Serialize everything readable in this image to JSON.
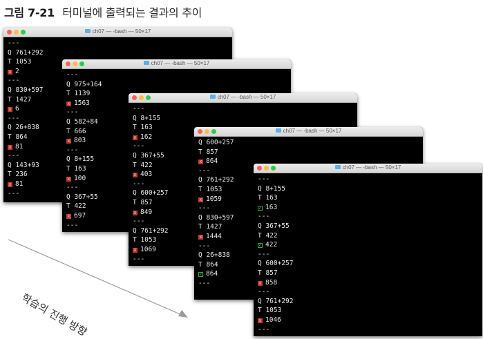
{
  "caption": {
    "number": "그림 7-21",
    "title": "터미널에 출력되는 결과의 추이"
  },
  "direction_label": "학습의 진행 방향",
  "icons": {
    "window_buttons": [
      "close-dot",
      "minimize-dot",
      "zoom-dot"
    ],
    "folder": "folder-icon",
    "wrong": "wrong-mark-icon",
    "correct": "correct-mark-icon"
  },
  "colors": {
    "terminal_bg": "#000000",
    "text": "#e8e8e8",
    "wrong_mark": "#c0392b",
    "correct_mark": "#2fa84f"
  },
  "windows": [
    {
      "title": "ch07 — -bash — 50×17",
      "lines": [
        {
          "kind": "sep",
          "text": "---"
        },
        {
          "kind": "q",
          "text": "Q 761+292"
        },
        {
          "kind": "t",
          "text": "T 1053"
        },
        {
          "kind": "x",
          "text": "2"
        },
        {
          "kind": "sep",
          "text": "---"
        },
        {
          "kind": "q",
          "text": "Q 830+597"
        },
        {
          "kind": "t",
          "text": "T 1427"
        },
        {
          "kind": "x",
          "text": "6"
        },
        {
          "kind": "sep",
          "text": "---"
        },
        {
          "kind": "q",
          "text": "Q 26+838"
        },
        {
          "kind": "t",
          "text": "T 864"
        },
        {
          "kind": "x",
          "text": "81"
        },
        {
          "kind": "sep",
          "text": "---"
        },
        {
          "kind": "q",
          "text": "Q 143+93"
        },
        {
          "kind": "t",
          "text": "T 236"
        },
        {
          "kind": "x",
          "text": "81"
        },
        {
          "kind": "sep",
          "text": "---"
        }
      ]
    },
    {
      "title": "ch07 — -bash — 50×17",
      "lines": [
        {
          "kind": "sep",
          "text": "---"
        },
        {
          "kind": "q",
          "text": "Q 975+164"
        },
        {
          "kind": "t",
          "text": "T 1139"
        },
        {
          "kind": "x",
          "text": "1563"
        },
        {
          "kind": "sep",
          "text": "---"
        },
        {
          "kind": "q",
          "text": "Q 582+84"
        },
        {
          "kind": "t",
          "text": "T 666"
        },
        {
          "kind": "x",
          "text": "803"
        },
        {
          "kind": "sep",
          "text": "---"
        },
        {
          "kind": "q",
          "text": "Q 8+155"
        },
        {
          "kind": "t",
          "text": "T 163"
        },
        {
          "kind": "x",
          "text": "100"
        },
        {
          "kind": "sep",
          "text": "---"
        },
        {
          "kind": "q",
          "text": "Q 367+55"
        },
        {
          "kind": "t",
          "text": "T 422"
        },
        {
          "kind": "x",
          "text": "697"
        },
        {
          "kind": "sep",
          "text": "---"
        }
      ]
    },
    {
      "title": "ch07 — -bash — 50×17",
      "lines": [
        {
          "kind": "sep",
          "text": "---"
        },
        {
          "kind": "q",
          "text": "Q 8+155"
        },
        {
          "kind": "t",
          "text": "T 163"
        },
        {
          "kind": "x",
          "text": "162"
        },
        {
          "kind": "sep",
          "text": "---"
        },
        {
          "kind": "q",
          "text": "Q 367+55"
        },
        {
          "kind": "t",
          "text": "T 422"
        },
        {
          "kind": "x",
          "text": "403"
        },
        {
          "kind": "sep",
          "text": "---"
        },
        {
          "kind": "q",
          "text": "Q 600+257"
        },
        {
          "kind": "t",
          "text": "T 857"
        },
        {
          "kind": "x",
          "text": "849"
        },
        {
          "kind": "sep",
          "text": "---"
        },
        {
          "kind": "q",
          "text": "Q 761+292"
        },
        {
          "kind": "t",
          "text": "T 1053"
        },
        {
          "kind": "x",
          "text": "1069"
        },
        {
          "kind": "sep",
          "text": "---"
        }
      ]
    },
    {
      "title": "ch07 — -bash — 50×17",
      "lines": [
        {
          "kind": "q",
          "text": "Q 600+257"
        },
        {
          "kind": "t",
          "text": "T 857"
        },
        {
          "kind": "x",
          "text": "864"
        },
        {
          "kind": "sep",
          "text": "---"
        },
        {
          "kind": "q",
          "text": "Q 761+292"
        },
        {
          "kind": "t",
          "text": "T 1053"
        },
        {
          "kind": "x",
          "text": "1059"
        },
        {
          "kind": "sep",
          "text": "---"
        },
        {
          "kind": "q",
          "text": "Q 830+597"
        },
        {
          "kind": "t",
          "text": "T 1427"
        },
        {
          "kind": "x",
          "text": "1444"
        },
        {
          "kind": "sep",
          "text": "---"
        },
        {
          "kind": "q",
          "text": "Q 26+838"
        },
        {
          "kind": "t",
          "text": "T 864"
        },
        {
          "kind": "ok",
          "text": "864"
        },
        {
          "kind": "sep",
          "text": "---"
        }
      ]
    },
    {
      "title": "ch07 — -bash — 50×17",
      "lines": [
        {
          "kind": "sep",
          "text": "---"
        },
        {
          "kind": "q",
          "text": "Q 8+155"
        },
        {
          "kind": "t",
          "text": "T 163"
        },
        {
          "kind": "ok",
          "text": "163"
        },
        {
          "kind": "sep",
          "text": "---"
        },
        {
          "kind": "q",
          "text": "Q 367+55"
        },
        {
          "kind": "t",
          "text": "T 422"
        },
        {
          "kind": "ok",
          "text": "422"
        },
        {
          "kind": "sep",
          "text": "---"
        },
        {
          "kind": "q",
          "text": "Q 600+257"
        },
        {
          "kind": "t",
          "text": "T 857"
        },
        {
          "kind": "x",
          "text": "858"
        },
        {
          "kind": "sep",
          "text": "---"
        },
        {
          "kind": "q",
          "text": "Q 761+292"
        },
        {
          "kind": "t",
          "text": "T 1053"
        },
        {
          "kind": "x",
          "text": "1046"
        },
        {
          "kind": "sep",
          "text": "---"
        }
      ]
    }
  ]
}
